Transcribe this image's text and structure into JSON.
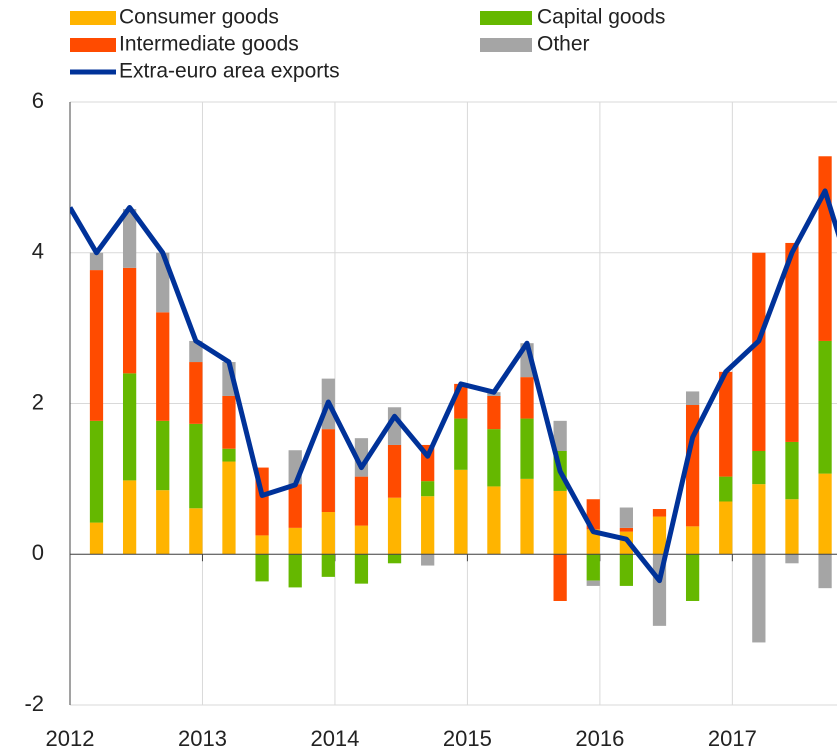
{
  "chart_data": {
    "type": "bar",
    "stacked": true,
    "x": [
      2012.0,
      2012.2,
      2012.45,
      2012.7,
      2012.95,
      2013.2,
      2013.45,
      2013.7,
      2013.95,
      2014.2,
      2014.45,
      2014.7,
      2014.95,
      2015.2,
      2015.45,
      2015.7,
      2015.95,
      2016.2,
      2016.45,
      2016.7,
      2016.95,
      2017.2,
      2017.45,
      2017.7,
      2017.95
    ],
    "series": [
      {
        "name": "Consumer goods",
        "type": "bar",
        "color": "#ffb400",
        "values": [
          null,
          0.42,
          0.98,
          0.85,
          0.61,
          1.23,
          0.25,
          0.35,
          0.56,
          0.38,
          0.75,
          0.77,
          1.12,
          0.9,
          1.0,
          0.84,
          0.33,
          0.3,
          0.5,
          0.37,
          0.7,
          0.93,
          0.73,
          1.07,
          null
        ]
      },
      {
        "name": "Capital goods",
        "type": "bar",
        "color": "#65b800",
        "values": [
          null,
          1.35,
          1.42,
          0.92,
          1.12,
          0.17,
          -0.36,
          -0.44,
          -0.3,
          -0.39,
          -0.12,
          0.2,
          0.68,
          0.76,
          0.8,
          0.53,
          -0.35,
          -0.42,
          0,
          -0.62,
          0.33,
          0.44,
          0.76,
          1.76,
          null
        ]
      },
      {
        "name": "Intermediate goods",
        "type": "bar",
        "color": "#ff4b00",
        "values": [
          null,
          2.0,
          1.4,
          1.44,
          0.82,
          0.7,
          0.9,
          0.58,
          1.1,
          0.65,
          0.7,
          0.48,
          0.46,
          0.44,
          0.55,
          -0.62,
          0.4,
          0.05,
          0.1,
          1.61,
          1.39,
          2.63,
          2.64,
          2.45,
          null
        ]
      },
      {
        "name": "Other",
        "type": "bar",
        "color": "#a5a5a5",
        "values": [
          null,
          0.23,
          0.78,
          0.79,
          0.28,
          0.45,
          0,
          0.45,
          0.67,
          0.51,
          0.5,
          -0.15,
          0,
          0.05,
          0.45,
          0.4,
          -0.07,
          0.27,
          -0.95,
          0.18,
          0,
          -1.17,
          -0.12,
          -0.45,
          null
        ]
      },
      {
        "name": "Extra-euro area exports",
        "type": "line",
        "color": "#003299",
        "values": [
          4.6,
          4.0,
          4.6,
          4.0,
          2.83,
          2.55,
          0.78,
          0.92,
          2.02,
          1.15,
          1.83,
          1.3,
          2.26,
          2.15,
          2.8,
          1.1,
          0.3,
          0.2,
          -0.35,
          1.55,
          2.42,
          2.83,
          4.0,
          4.82,
          3.4
        ]
      }
    ],
    "xlim": [
      2012,
      2017.79
    ],
    "xticks": [
      2012,
      2013,
      2014,
      2015,
      2016,
      2017
    ],
    "ylim": [
      -2,
      6
    ],
    "yticks": [
      -2,
      0,
      2,
      4,
      6
    ],
    "grid": true
  }
}
